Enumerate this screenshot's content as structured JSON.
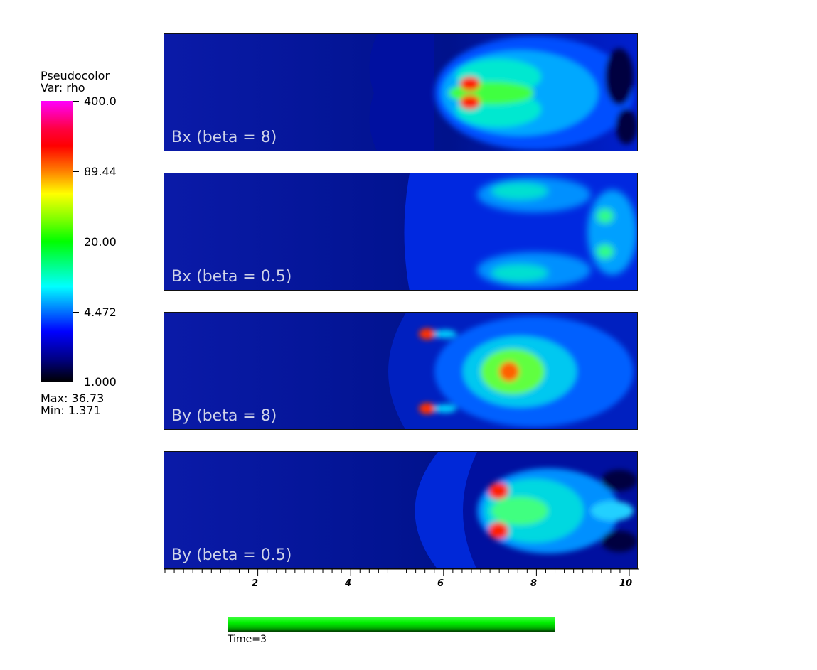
{
  "legend": {
    "title": "Pseudocolor",
    "var": "Var: rho",
    "ticks": [
      "400.0",
      "89.44",
      "20.00",
      "4.472",
      "1.000"
    ],
    "max": "Max:  36.73",
    "min": "Min:  1.371"
  },
  "panels": [
    {
      "label": "Bx (beta = 8)"
    },
    {
      "label": "Bx (beta = 0.5)"
    },
    {
      "label": "By (beta = 8)"
    },
    {
      "label": "By (beta = 0.5)"
    }
  ],
  "axis": {
    "labels": [
      "2",
      "4",
      "6",
      "8",
      "10"
    ]
  },
  "time": {
    "label": "Time=3",
    "progress": 1.0
  }
}
